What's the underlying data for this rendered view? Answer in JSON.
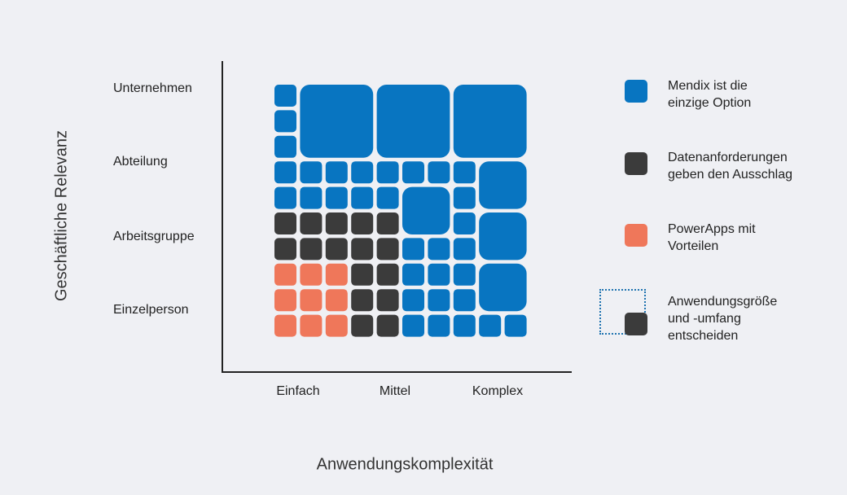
{
  "axes": {
    "y_label": "Geschäftliche Relevanz",
    "x_label": "Anwendungskomplexität",
    "y_ticks": [
      "Unternehmen",
      "Abteilung",
      "Arbeitsgruppe",
      "Einzelperson"
    ],
    "x_ticks": [
      "Einfach",
      "Mittel",
      "Komplex"
    ]
  },
  "legend": [
    {
      "swatch": "blue",
      "lines": [
        "Mendix ist die",
        "einzige Option"
      ]
    },
    {
      "swatch": "dark",
      "lines": [
        "Datenanforderungen",
        "geben den Ausschlag"
      ]
    },
    {
      "swatch": "orange",
      "lines": [
        "PowerApps mit",
        "Vorteilen"
      ]
    },
    {
      "swatch": "dark-dotted",
      "lines": [
        "Anwendungsgröße",
        "und -umfang",
        "entscheiden"
      ]
    }
  ],
  "colors": {
    "blue": "#0875c1",
    "dark": "#3b3b3b",
    "orange": "#ef775a",
    "axis": "#222222",
    "background": "#eff0f4"
  },
  "chart_data": {
    "type": "heatmap",
    "x_categories": [
      "Einfach",
      "Mittel",
      "Komplex"
    ],
    "y_categories": [
      "Unternehmen",
      "Abteilung",
      "Arbeitsgruppe",
      "Einzelperson"
    ],
    "cell_categories": {
      "B": "Mendix ist die einzige Option",
      "D": "Datenanforderungen geben den Ausschlag",
      "O": "PowerApps mit Vorteilen"
    },
    "grid_rows_top_to_bottom": [
      "BBBBBBBBBB",
      "BBBBBBBBBB",
      "BBBBBBBBBB",
      "BBBBBBBBBB",
      "BBBBBBBBBB",
      "DDDDDBBBBB",
      "DDDDDBBBBB",
      "OOODDBBBBB",
      "OOODDBBBBB",
      "OOODDBBBBB"
    ]
  }
}
